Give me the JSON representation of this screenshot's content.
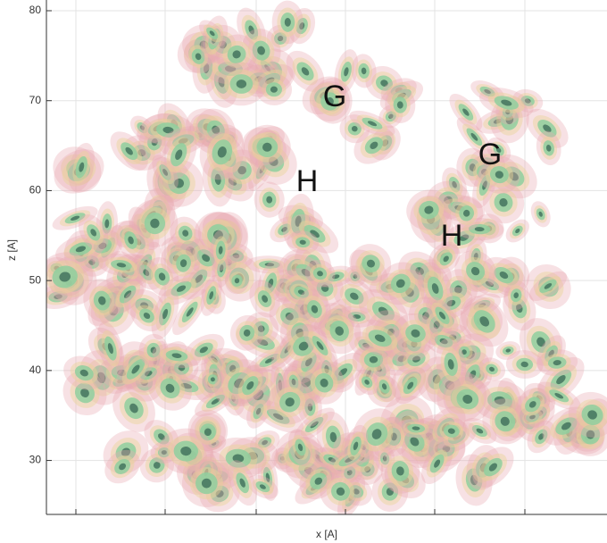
{
  "chart_data": {
    "type": "density",
    "xlabel": "x [A]",
    "ylabel": "z [A]",
    "ylim": [
      24,
      80
    ],
    "yticks": [
      30,
      40,
      50,
      60,
      70,
      80
    ],
    "grid": true,
    "annotations": [
      "G",
      "H",
      "G",
      "H"
    ]
  }
}
